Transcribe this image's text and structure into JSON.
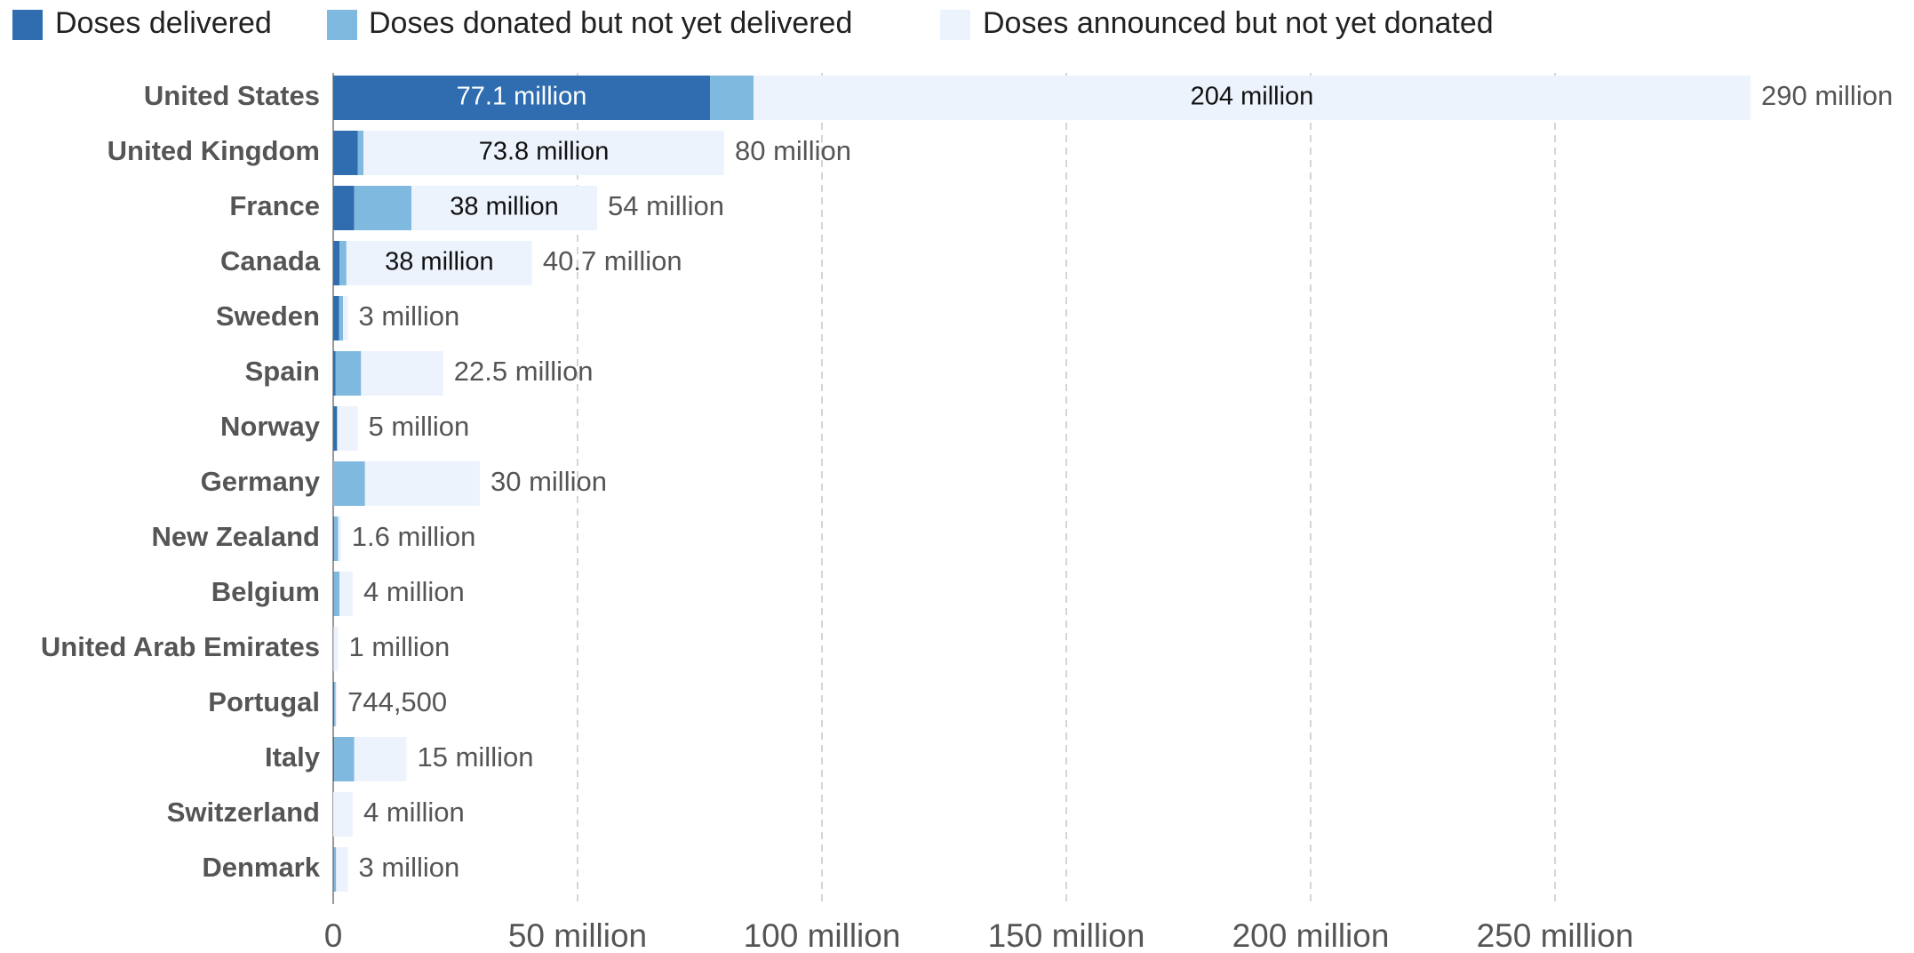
{
  "chart_data": {
    "type": "stacked-bar-horizontal",
    "categories": [
      "United States",
      "United Kingdom",
      "France",
      "Canada",
      "Sweden",
      "Spain",
      "Norway",
      "Germany",
      "New Zealand",
      "Belgium",
      "United Arab Emirates",
      "Portugal",
      "Italy",
      "Switzerland",
      "Denmark"
    ],
    "series": [
      {
        "name": "Doses delivered",
        "color": "#2f6db0",
        "values": [
          77100000,
          5000000,
          4300000,
          1300000,
          1200000,
          500000,
          800000,
          0,
          200000,
          100000,
          0,
          200000,
          200000,
          0,
          100000
        ],
        "value_labels": [
          "77.1 million",
          null,
          null,
          null,
          null,
          null,
          null,
          null,
          null,
          null,
          null,
          null,
          null,
          null,
          null
        ]
      },
      {
        "name": "Doses donated but not yet delivered",
        "color": "#80b9df",
        "values": [
          8900000,
          1200000,
          11700000,
          1400000,
          800000,
          5200000,
          0,
          6500000,
          800000,
          1200000,
          100000,
          300000,
          4100000,
          0,
          500000
        ]
      },
      {
        "name": "Doses announced but not yet donated",
        "color": "#edf3fd",
        "values": [
          204000000,
          73800000,
          38000000,
          38000000,
          1000000,
          16800000,
          4200000,
          23500000,
          600000,
          2700000,
          900000,
          244500,
          10700000,
          4000000,
          2400000
        ],
        "value_labels": [
          "204 million",
          "73.8 million",
          "38 million",
          "38 million",
          null,
          null,
          null,
          null,
          null,
          null,
          null,
          null,
          null,
          null,
          null
        ]
      }
    ],
    "totals": [
      290000000,
      80000000,
      54000000,
      40700000,
      3000000,
      22500000,
      5000000,
      30000000,
      1600000,
      4000000,
      1000000,
      744500,
      15000000,
      4000000,
      3000000
    ],
    "total_labels": [
      "290 million",
      "80 million",
      "54 million",
      "40.7 million",
      "3 million",
      "22.5 million",
      "5 million",
      "30 million",
      "1.6 million",
      "4 million",
      "1 million",
      "744,500",
      "15 million",
      "4 million",
      "3 million"
    ],
    "xlim": [
      0,
      290000000
    ],
    "xticks": [
      0,
      {
        "value": 50000000,
        "label": "50 million"
      },
      {
        "value": 100000000,
        "label": "100 million"
      },
      {
        "value": 150000000,
        "label": "150 million"
      },
      {
        "value": 200000000,
        "label": "200 million"
      },
      {
        "value": 250000000,
        "label": "250 million"
      }
    ],
    "grid": true
  }
}
